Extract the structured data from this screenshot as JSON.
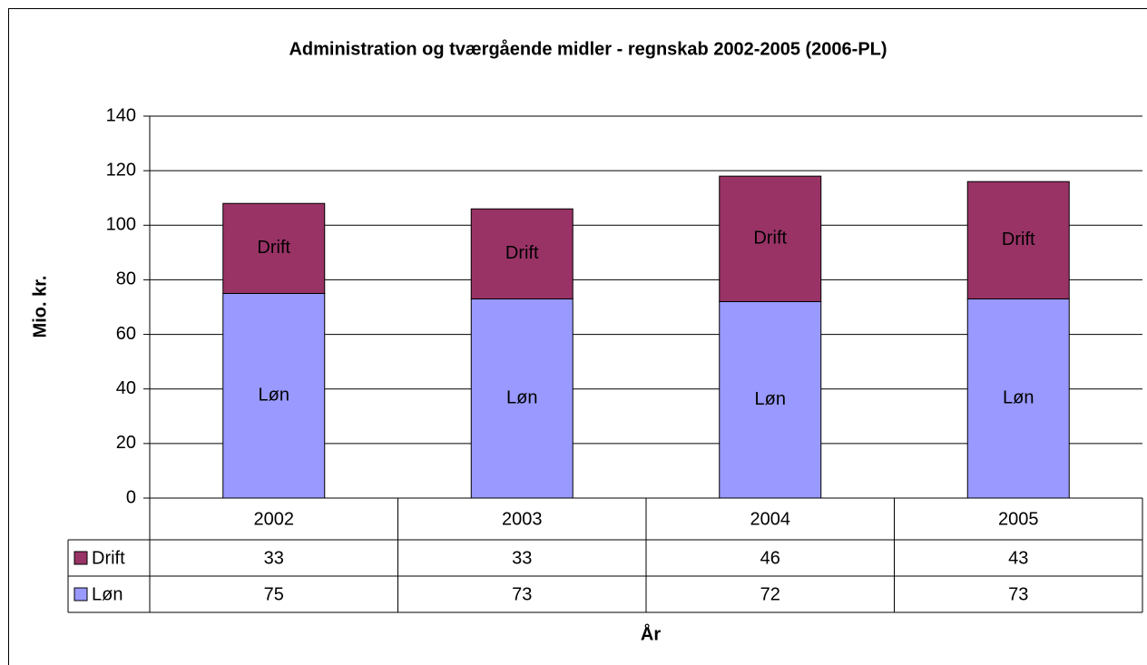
{
  "chart_data": {
    "type": "stacked_bar",
    "title": "Administration og tværgående midler - regnskab 2002-2005 (2006-PL)",
    "y_label": "Mio. kr.",
    "x_label": "År",
    "categories": [
      "2002",
      "2003",
      "2004",
      "2005"
    ],
    "series": [
      {
        "name": "Drift",
        "color": "#993366",
        "values": [
          33,
          33,
          46,
          43
        ]
      },
      {
        "name": "Løn",
        "color": "#9999ff",
        "values": [
          75,
          73,
          72,
          73
        ]
      }
    ],
    "ylim": [
      0,
      140
    ],
    "yticks": [
      0,
      20,
      40,
      60,
      80,
      100,
      120,
      140
    ],
    "grid": true
  }
}
